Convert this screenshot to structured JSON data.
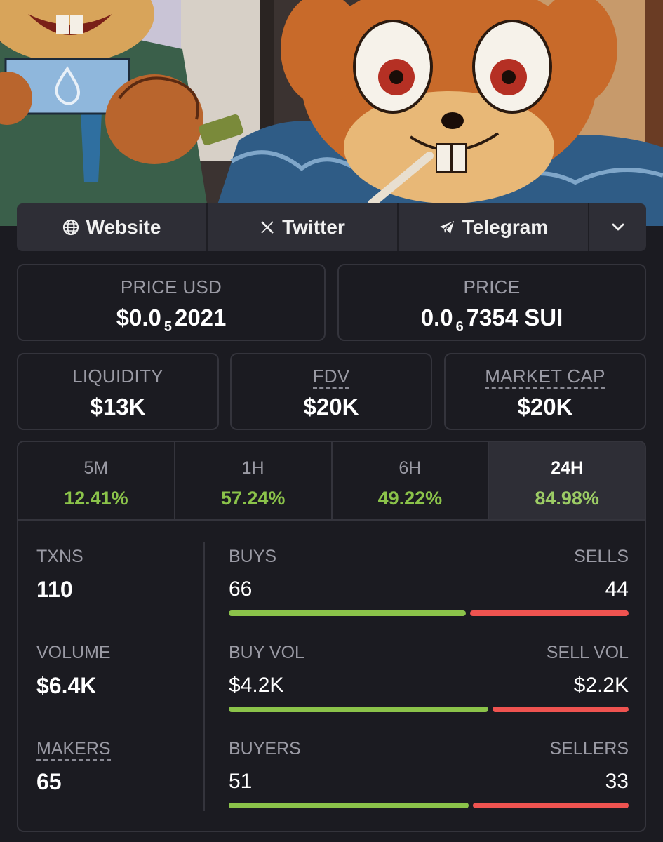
{
  "links": {
    "website": "Website",
    "twitter": "Twitter",
    "telegram": "Telegram"
  },
  "price_usd": {
    "label": "PRICE USD",
    "prefix": "$0.0",
    "sub": "5",
    "suffix": "2021"
  },
  "price_native": {
    "label": "PRICE",
    "prefix": "0.0",
    "sub": "6",
    "suffix": "7354 SUI"
  },
  "liquidity": {
    "label": "LIQUIDITY",
    "value": "$13K"
  },
  "fdv": {
    "label": "FDV",
    "value": "$20K"
  },
  "market_cap": {
    "label": "MARKET CAP",
    "value": "$20K"
  },
  "timeframes": [
    {
      "label": "5M",
      "change": "12.41%"
    },
    {
      "label": "1H",
      "change": "57.24%"
    },
    {
      "label": "6H",
      "change": "49.22%"
    },
    {
      "label": "24H",
      "change": "84.98%"
    }
  ],
  "stats": {
    "txns": {
      "label": "TXNS",
      "value": "110"
    },
    "volume": {
      "label": "VOLUME",
      "value": "$6.4K"
    },
    "makers": {
      "label": "MAKERS",
      "value": "65"
    }
  },
  "splits": {
    "txns": {
      "left_label": "BUYS",
      "right_label": "SELLS",
      "left_value": "66",
      "right_value": "44",
      "left_num": 66,
      "right_num": 44
    },
    "volume": {
      "left_label": "BUY VOL",
      "right_label": "SELL VOL",
      "left_value": "$4.2K",
      "right_value": "$2.2K",
      "left_num": 4.2,
      "right_num": 2.2
    },
    "makers": {
      "left_label": "BUYERS",
      "right_label": "SELLERS",
      "left_value": "51",
      "right_value": "33",
      "left_num": 51,
      "right_num": 33
    }
  },
  "colors": {
    "positive": "#8bc34a",
    "negative": "#ef5350",
    "background": "#1b1b21"
  },
  "icons": {
    "website": "globe-icon",
    "twitter": "x-logo-icon",
    "telegram": "paper-plane-icon",
    "more": "chevron-down-icon"
  }
}
